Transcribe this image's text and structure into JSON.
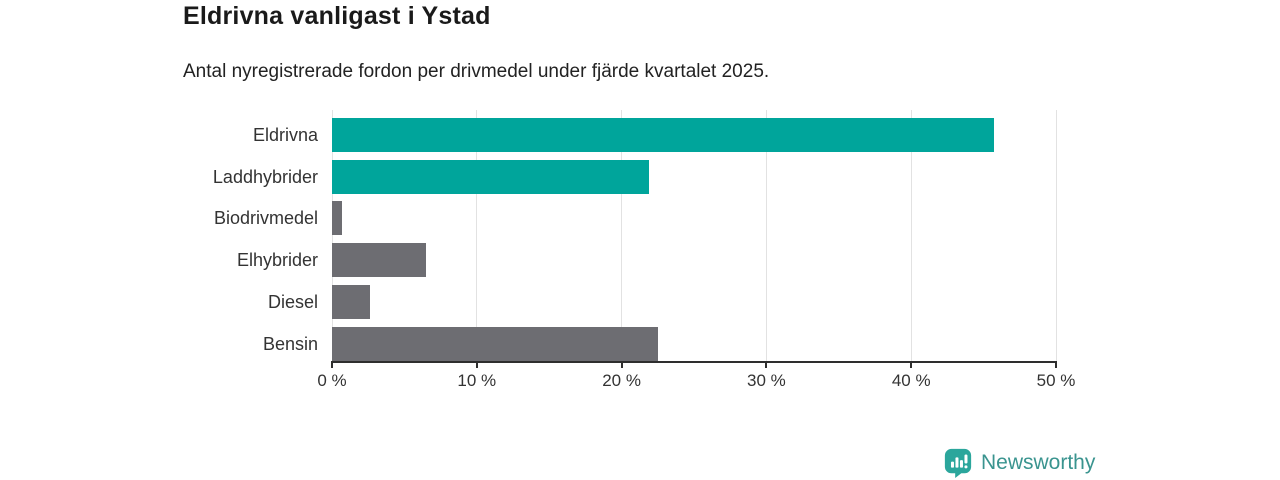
{
  "title": "Eldrivna vanligast i Ystad",
  "subtitle": "Antal nyregistrerade fordon per drivmedel under fjärde kvartalet 2025.",
  "chart_data": {
    "type": "bar",
    "orientation": "horizontal",
    "title": "Eldrivna vanligast i Ystad",
    "subtitle": "Antal nyregistrerade fordon per drivmedel under fjärde kvartalet 2025.",
    "categories": [
      "Eldrivna",
      "Laddhybrider",
      "Biodrivmedel",
      "Elhybrider",
      "Diesel",
      "Bensin"
    ],
    "values": [
      45.7,
      21.9,
      0.7,
      6.5,
      2.6,
      22.5
    ],
    "unit": "%",
    "xlim": [
      0,
      50
    ],
    "x_tick_labels": [
      "0 %",
      "10 %",
      "20 %",
      "30 %",
      "40 %",
      "50 %"
    ],
    "x_tick_values": [
      0,
      10,
      20,
      30,
      40,
      50
    ],
    "xlabel": "",
    "ylabel": "",
    "grid": true,
    "legend": false,
    "bar_colors": [
      "#00a59b",
      "#00a59b",
      "#6d6d72",
      "#6d6d72",
      "#6d6d72",
      "#6d6d72"
    ],
    "highlight_color": "#00a59b",
    "default_color": "#6d6d72"
  },
  "colors": {
    "teal": "#00a59b",
    "gray": "#6d6d72",
    "axis": "#2e2e2e",
    "gridline": "#e2e2e2",
    "logo": "#3a948f",
    "logo_icon": "#2ba69c"
  },
  "branding": {
    "logo_text": "Newsworthy",
    "logo_icon": "bar-chart-bubble-icon"
  }
}
